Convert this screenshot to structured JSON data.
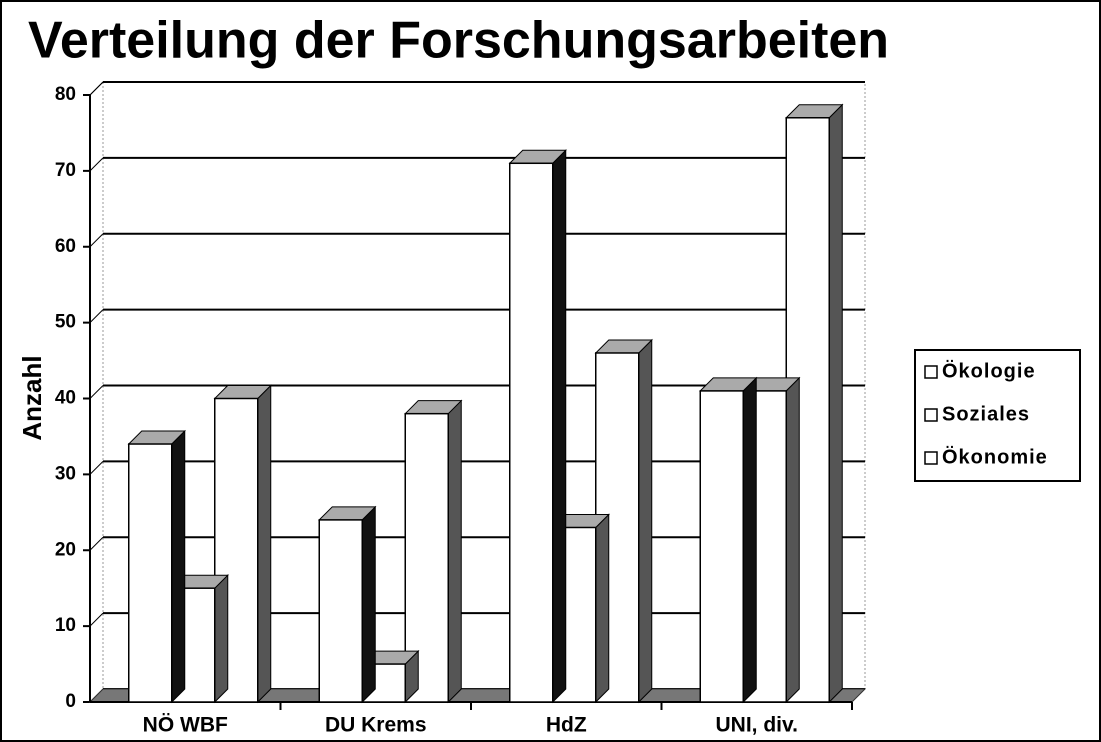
{
  "chart_data": {
    "type": "bar",
    "title": "Verteilung der Forschungsarbeiten",
    "y_label": "Anzahl",
    "categories": [
      "NÖ WBF",
      "DU Krems",
      "HdZ",
      "UNI, div."
    ],
    "series": [
      {
        "name": "Ökologie",
        "color": "#ffffff",
        "values": [
          34,
          24,
          71,
          41
        ]
      },
      {
        "name": "Soziales",
        "color": "#ffffff",
        "values": [
          15,
          5,
          23,
          41
        ]
      },
      {
        "name": "Ökonomie",
        "color": "#ffffff",
        "values": [
          40,
          38,
          46,
          77
        ]
      }
    ],
    "ylim": [
      0,
      80
    ],
    "yticks": [
      0,
      10,
      20,
      30,
      40,
      50,
      60,
      70,
      80
    ],
    "grid": true,
    "legend": "right"
  }
}
